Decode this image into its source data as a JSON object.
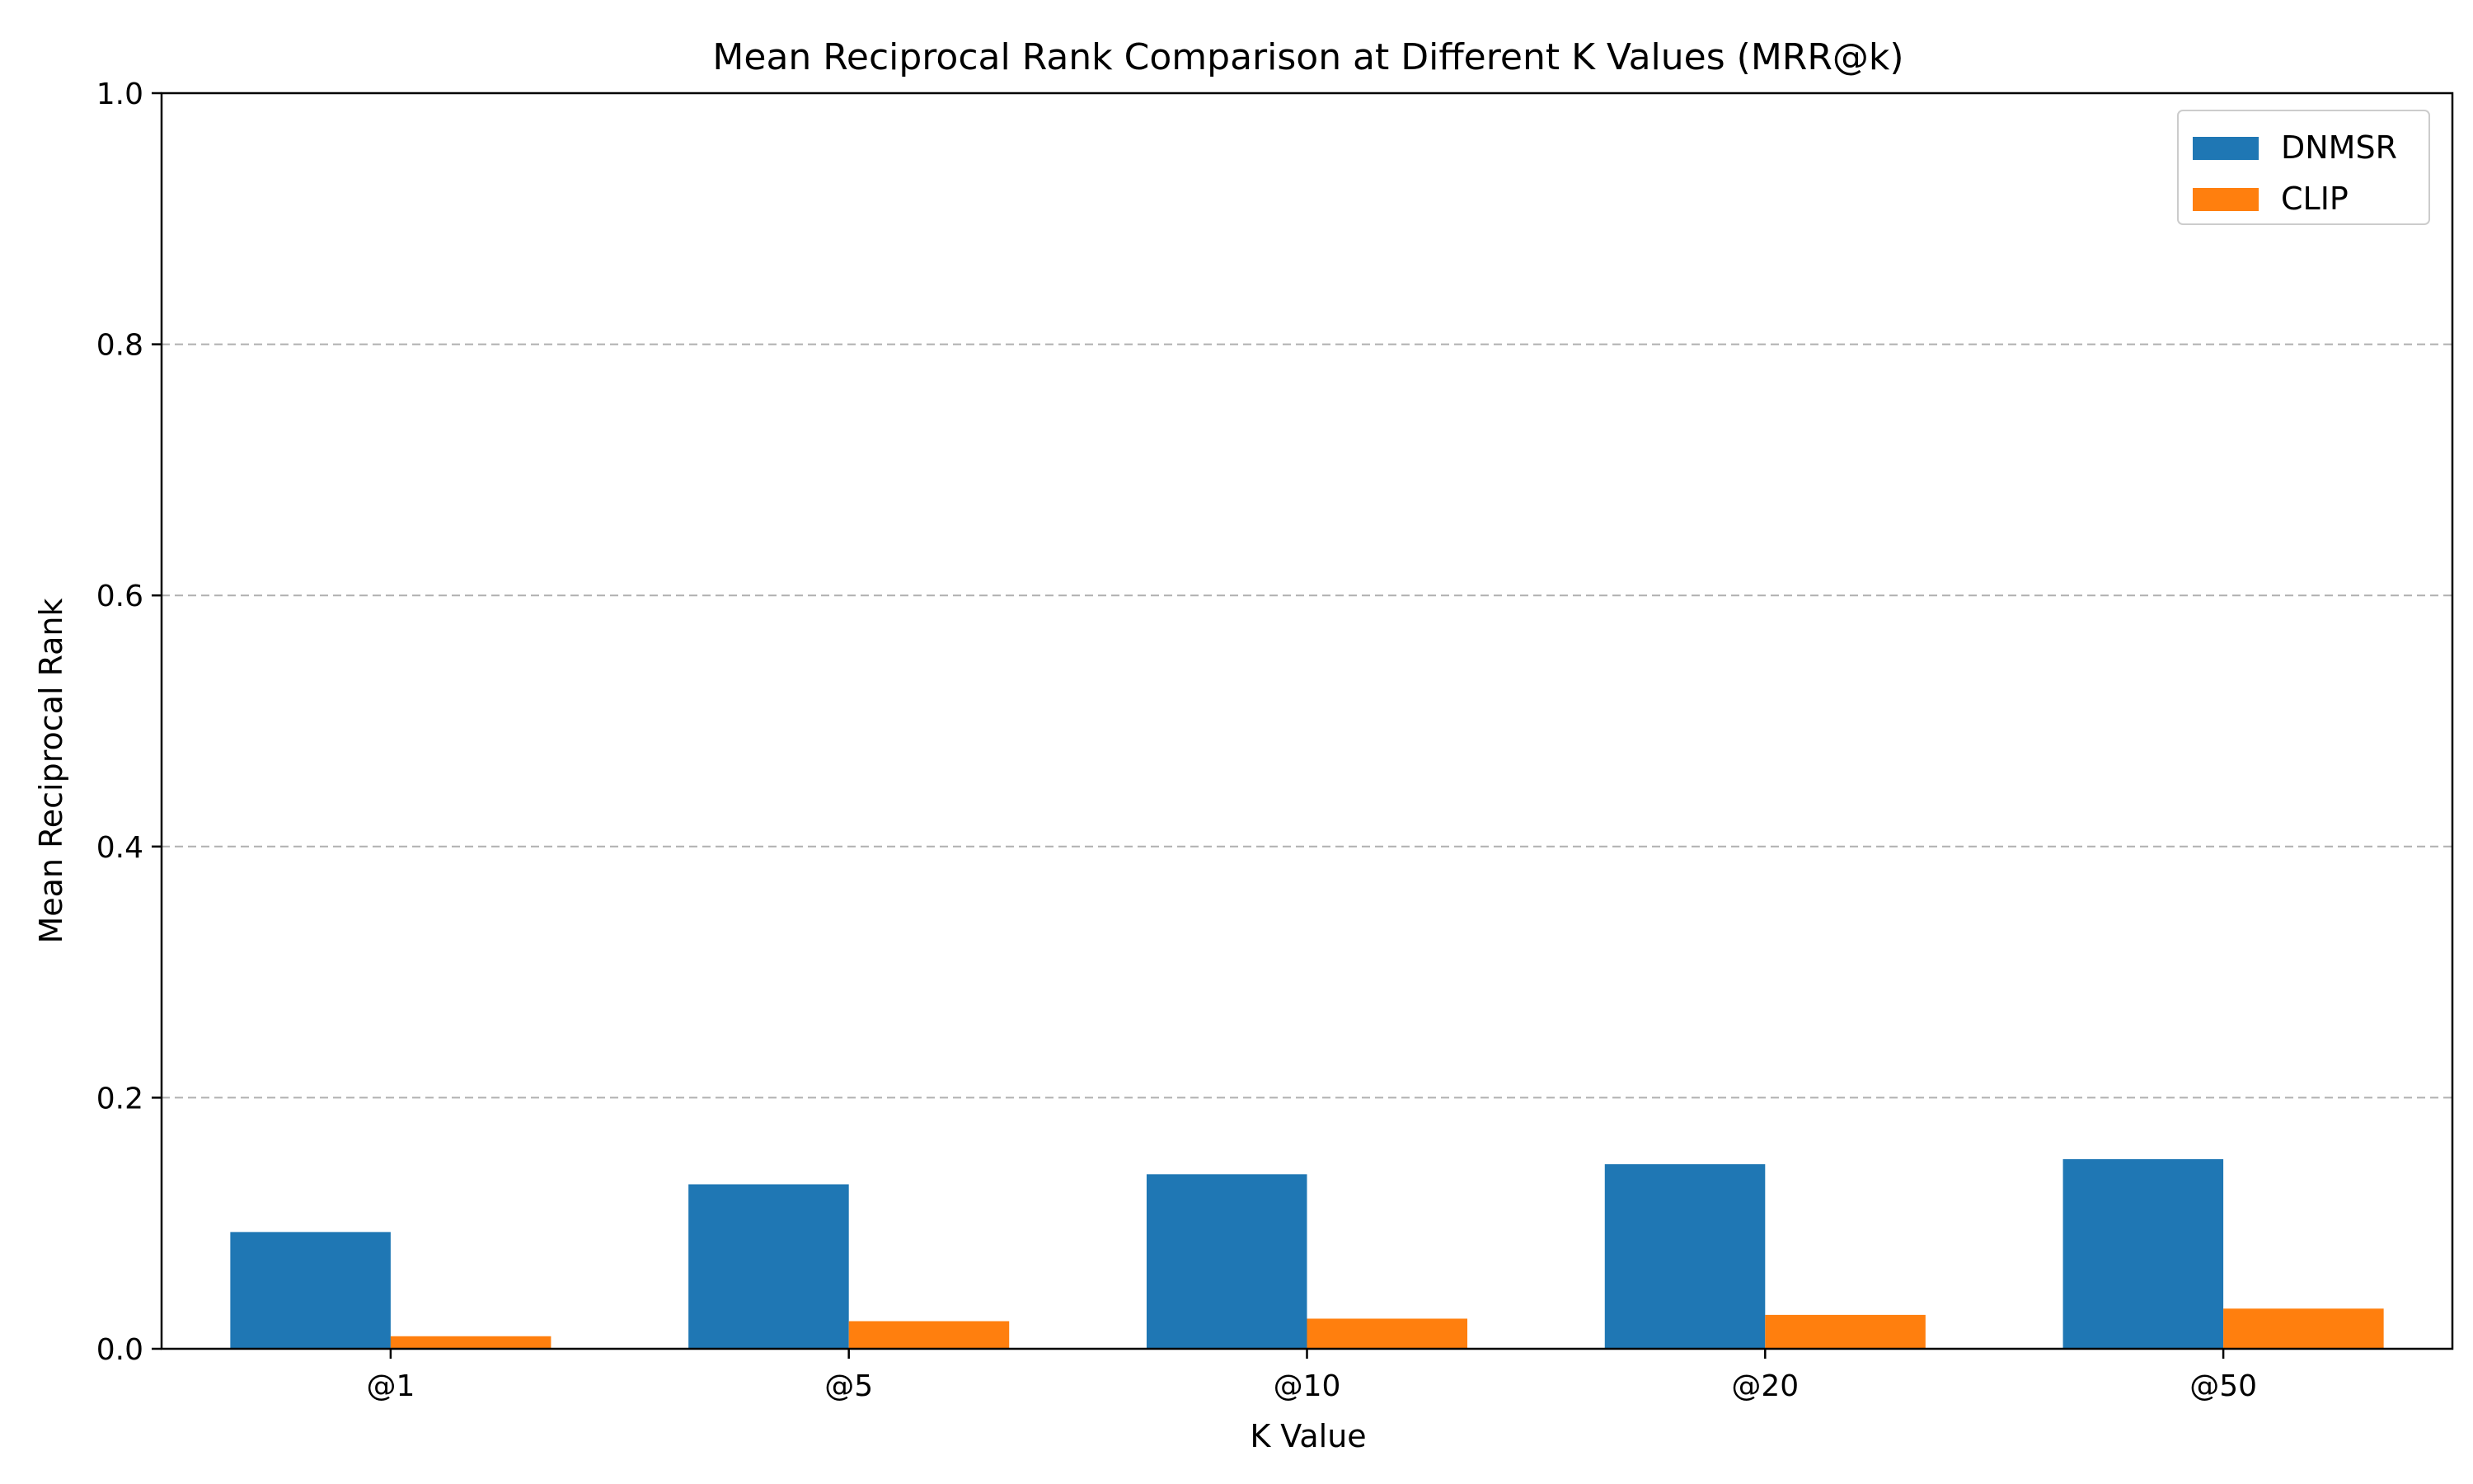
{
  "chart_data": {
    "type": "bar",
    "title": "Mean Reciprocal Rank Comparison at Different K Values (MRR@k)",
    "xlabel": "K Value",
    "ylabel": "Mean Reciprocal Rank",
    "categories": [
      "@1",
      "@5",
      "@10",
      "@20",
      "@50"
    ],
    "series": [
      {
        "name": "DNMSR",
        "values": [
          0.093,
          0.131,
          0.139,
          0.147,
          0.151
        ],
        "color": "#1f77b4"
      },
      {
        "name": "CLIP",
        "values": [
          0.01,
          0.022,
          0.024,
          0.027,
          0.032
        ],
        "color": "#ff7f0e"
      }
    ],
    "ylim": [
      0,
      1.0
    ],
    "yticks": [
      "0.0",
      "0.2",
      "0.4",
      "0.6",
      "0.8",
      "1.0"
    ],
    "ytick_values": [
      0,
      0.2,
      0.4,
      0.6,
      0.8,
      1.0
    ],
    "grid": "y, dashed",
    "legend_position": "top-right"
  }
}
